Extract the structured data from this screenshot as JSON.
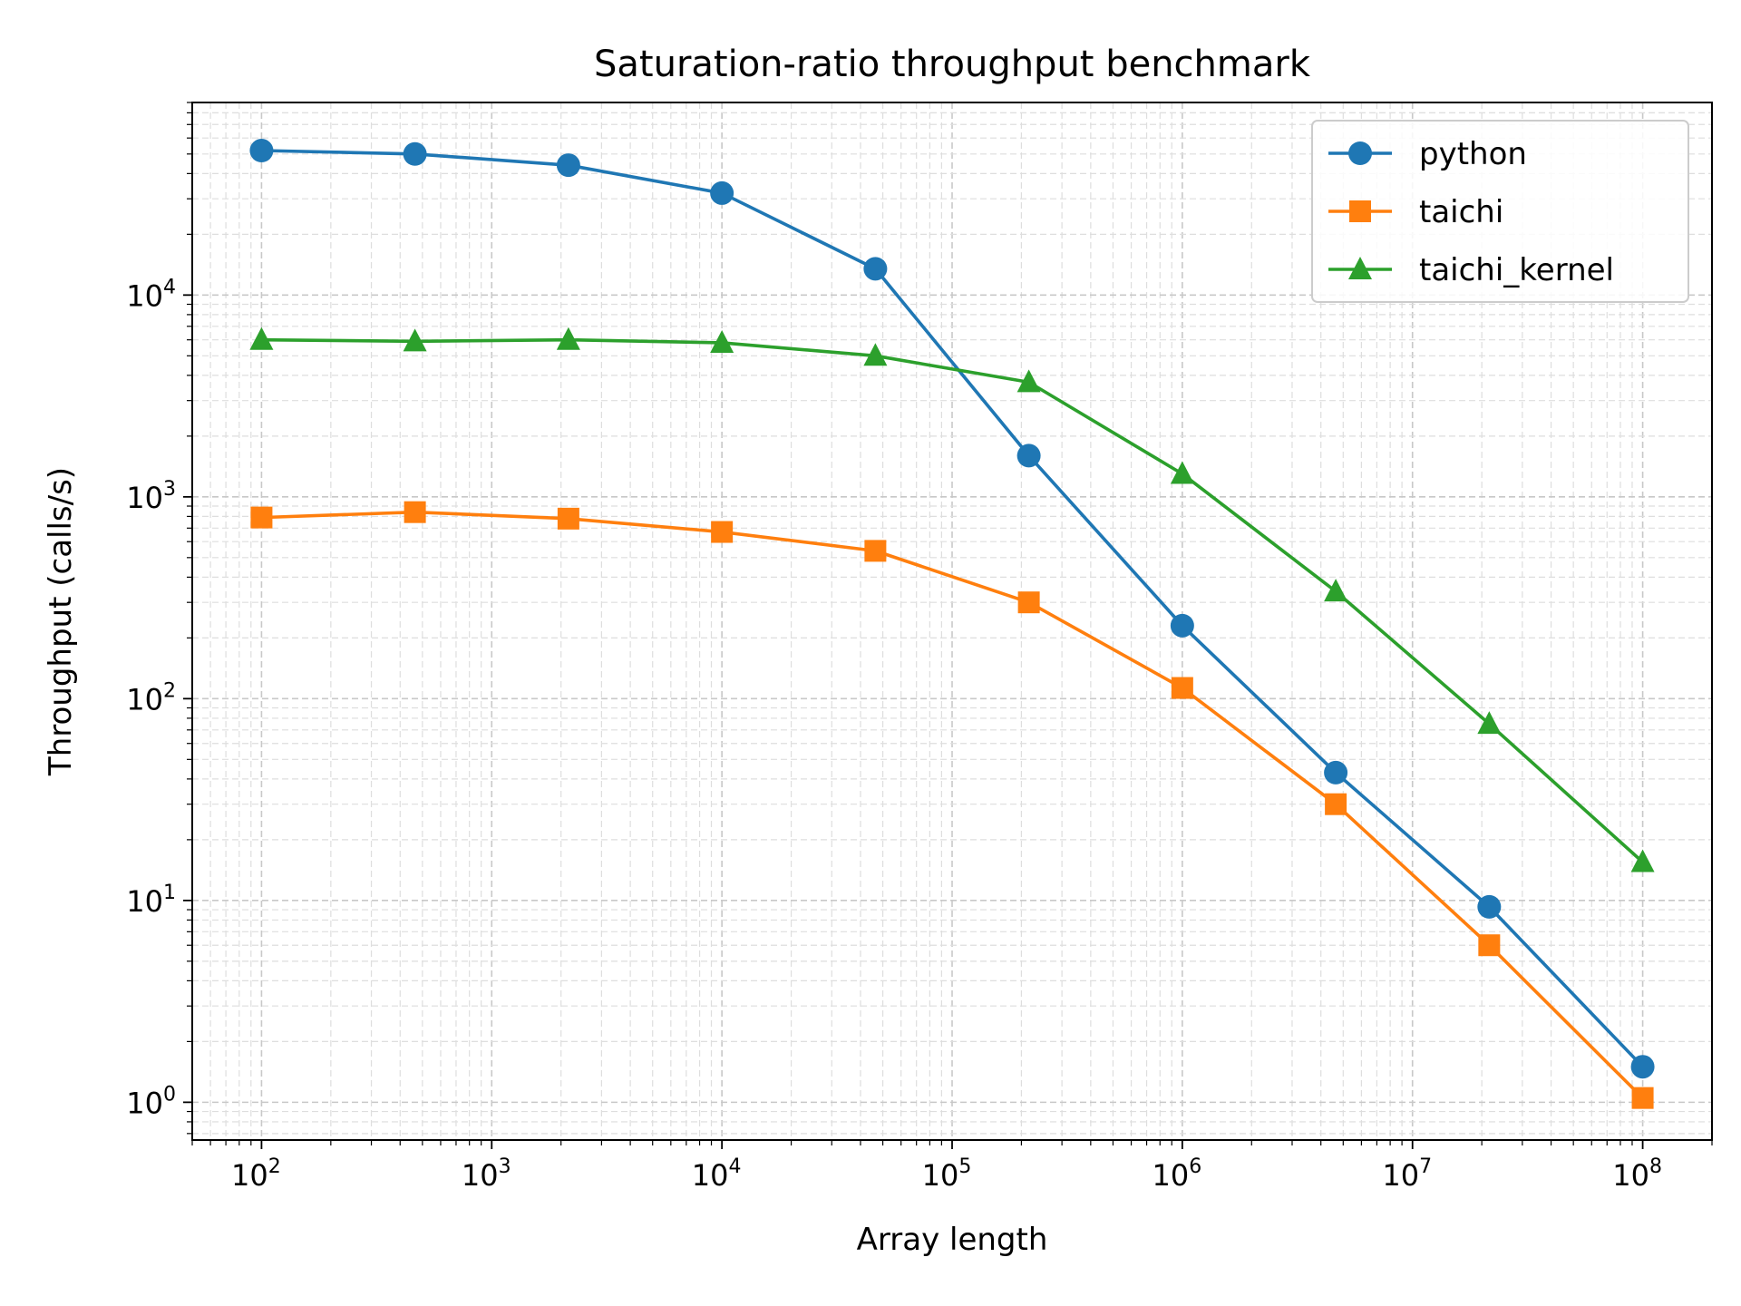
{
  "chart_data": {
    "type": "line",
    "title": "Saturation-ratio throughput benchmark",
    "xlabel": "Array length",
    "ylabel": "Throughput (calls/s)",
    "xscale": "log",
    "yscale": "log",
    "xlim": [
      50,
      200000000
    ],
    "ylim": [
      0.65,
      90000
    ],
    "grid": true,
    "legend_position": "top-right",
    "x_tick_labels": [
      {
        "base": "10",
        "exp": "2"
      },
      {
        "base": "10",
        "exp": "3"
      },
      {
        "base": "10",
        "exp": "4"
      },
      {
        "base": "10",
        "exp": "5"
      },
      {
        "base": "10",
        "exp": "6"
      },
      {
        "base": "10",
        "exp": "7"
      },
      {
        "base": "10",
        "exp": "8"
      }
    ],
    "y_tick_labels": [
      {
        "base": "10",
        "exp": "0"
      },
      {
        "base": "10",
        "exp": "1"
      },
      {
        "base": "10",
        "exp": "2"
      },
      {
        "base": "10",
        "exp": "3"
      },
      {
        "base": "10",
        "exp": "4"
      }
    ],
    "x": [
      100,
      464,
      2154,
      10000,
      46416,
      215443,
      1000000,
      4641589,
      21544347,
      100000000
    ],
    "series": [
      {
        "name": "python",
        "color": "#1f77b4",
        "marker": "circle",
        "values": [
          52000,
          50000,
          44000,
          32000,
          13500,
          1600,
          230,
          43,
          9.3,
          1.5
        ]
      },
      {
        "name": "taichi",
        "color": "#ff7f0e",
        "marker": "square",
        "values": [
          790,
          840,
          780,
          670,
          540,
          300,
          113,
          30,
          6,
          1.05
        ]
      },
      {
        "name": "taichi_kernel",
        "color": "#2ca02c",
        "marker": "triangle",
        "values": [
          6000,
          5900,
          6000,
          5800,
          5000,
          3700,
          1300,
          340,
          75,
          15.5
        ]
      }
    ]
  }
}
